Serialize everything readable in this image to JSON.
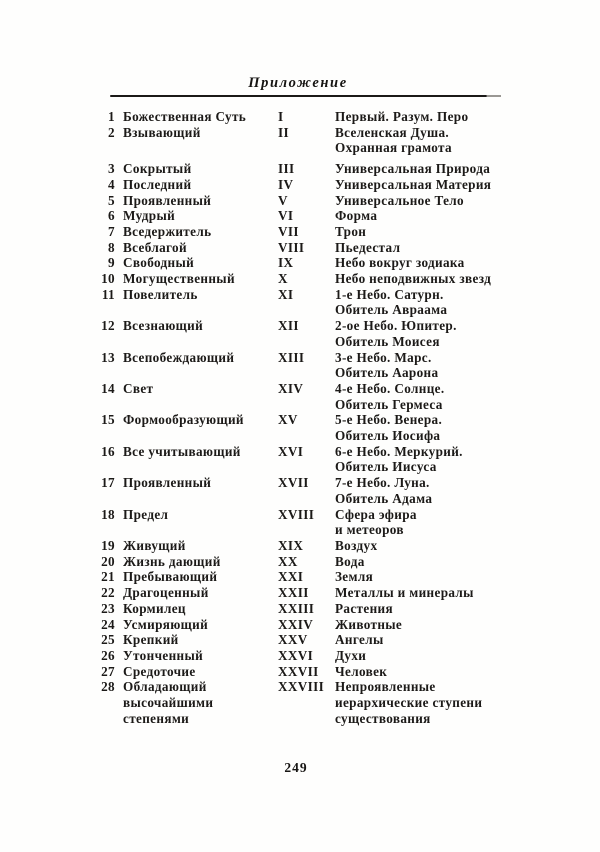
{
  "page": {
    "header": "Приложение",
    "page_number": "249"
  },
  "table": {
    "rows": [
      {
        "num": "1",
        "name": [
          "Божественная Суть"
        ],
        "roman": "I",
        "desc": [
          "Первый. Разум. Перо"
        ]
      },
      {
        "num": "2",
        "name": [
          "Взывающий"
        ],
        "roman": "II",
        "desc": [
          "Вселенская Душа.",
          "Охранная грамота"
        ]
      },
      {
        "num": "3",
        "name": [
          "Сокрытый"
        ],
        "roman": "III",
        "desc": [
          "Универсальная Природа"
        ]
      },
      {
        "num": "4",
        "name": [
          "Последний"
        ],
        "roman": "IV",
        "desc": [
          "Универсальная Материя"
        ]
      },
      {
        "num": "5",
        "name": [
          "Проявленный"
        ],
        "roman": "V",
        "desc": [
          "Универсальное Тело"
        ]
      },
      {
        "num": "6",
        "name": [
          "Мудрый"
        ],
        "roman": "VI",
        "desc": [
          "Форма"
        ]
      },
      {
        "num": "7",
        "name": [
          "Вседержитель"
        ],
        "roman": "VII",
        "desc": [
          "Трон"
        ]
      },
      {
        "num": "8",
        "name": [
          "Всеблагой"
        ],
        "roman": "VIII",
        "desc": [
          "Пьедестал"
        ]
      },
      {
        "num": "9",
        "name": [
          "Свободный"
        ],
        "roman": "IX",
        "desc": [
          "Небо вокруг зодиака"
        ]
      },
      {
        "num": "10",
        "name": [
          "Могущественный"
        ],
        "roman": "X",
        "desc": [
          "Небо неподвижных звезд"
        ]
      },
      {
        "num": "11",
        "name": [
          "Повелитель"
        ],
        "roman": "XI",
        "desc": [
          "1-е Небо. Сатурн.",
          "Обитель Авраама"
        ]
      },
      {
        "num": "12",
        "name": [
          "Всезнающий"
        ],
        "roman": "XII",
        "desc": [
          "2-ое Небо. Юпитер.",
          "Обитель Моисея"
        ]
      },
      {
        "num": "13",
        "name": [
          "Всепобеждающий"
        ],
        "roman": "XIII",
        "desc": [
          "3-е Небо. Марс.",
          "Обитель Аарона"
        ]
      },
      {
        "num": "14",
        "name": [
          "Свет"
        ],
        "roman": "XIV",
        "desc": [
          "4-е Небо. Солнце.",
          "Обитель Гермеса"
        ]
      },
      {
        "num": "15",
        "name": [
          "Формообразующий"
        ],
        "roman": "XV",
        "desc": [
          "5-е Небо. Венера.",
          "Обитель Иосифа"
        ]
      },
      {
        "num": "16",
        "name": [
          "Все учитывающий"
        ],
        "roman": "XVI",
        "desc": [
          "6-е Небо. Меркурий.",
          "Обитель Иисуса"
        ]
      },
      {
        "num": "17",
        "name": [
          "Проявленный"
        ],
        "roman": "XVII",
        "desc": [
          "7-е Небо. Луна.",
          "Обитель Адама"
        ]
      },
      {
        "num": "18",
        "name": [
          "Предел"
        ],
        "roman": "XVIII",
        "desc": [
          "Сфера эфира",
          "и метеоров"
        ]
      },
      {
        "num": "19",
        "name": [
          "Живущий"
        ],
        "roman": "XIX",
        "desc": [
          "Воздух"
        ]
      },
      {
        "num": "20",
        "name": [
          "Жизнь дающий"
        ],
        "roman": "XX",
        "desc": [
          "Вода"
        ]
      },
      {
        "num": "21",
        "name": [
          "Пребывающий"
        ],
        "roman": "XXI",
        "desc": [
          "Земля"
        ]
      },
      {
        "num": "22",
        "name": [
          "Драгоценный"
        ],
        "roman": "XXII",
        "desc": [
          "Металлы и минералы"
        ]
      },
      {
        "num": "23",
        "name": [
          "Кормилец"
        ],
        "roman": "XXIII",
        "desc": [
          "Растения"
        ]
      },
      {
        "num": "24",
        "name": [
          "Усмиряющий"
        ],
        "roman": "XXIV",
        "desc": [
          "Животные"
        ]
      },
      {
        "num": "25",
        "name": [
          "Крепкий"
        ],
        "roman": "XXV",
        "desc": [
          "Ангелы"
        ]
      },
      {
        "num": "26",
        "name": [
          "Утонченный"
        ],
        "roman": "XXVI",
        "desc": [
          "Духи"
        ]
      },
      {
        "num": "27",
        "name": [
          "Средоточие"
        ],
        "roman": "XXVII",
        "desc": [
          "Человек"
        ]
      },
      {
        "num": "28",
        "name": [
          "Обладающий",
          "высочайшими",
          "степенями"
        ],
        "roman": "XXVIII",
        "desc": [
          "Непроявленные",
          "иерархические ступени",
          "существования"
        ]
      }
    ]
  }
}
